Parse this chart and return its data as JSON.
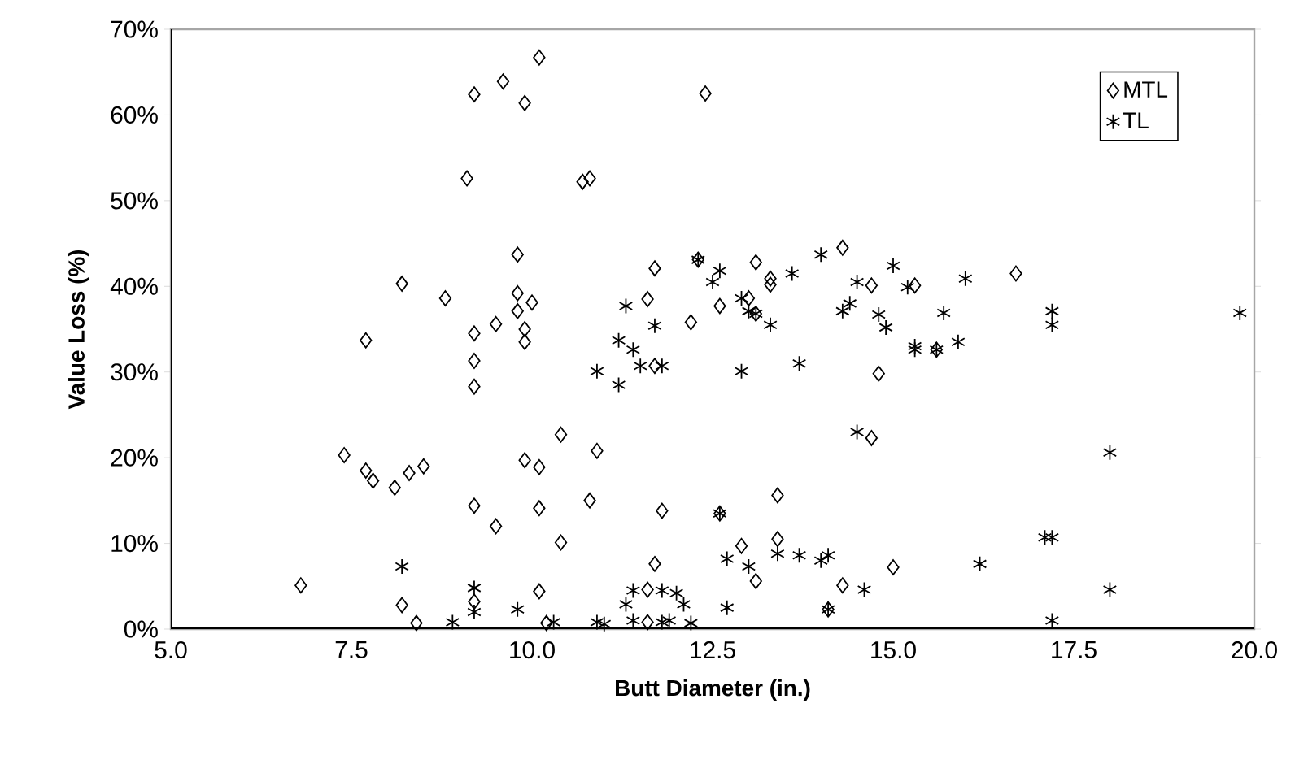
{
  "chart_data": {
    "type": "scatter",
    "xlabel": "Butt Diameter (in.)",
    "ylabel": "Value Loss (%)",
    "xlim": [
      5,
      20
    ],
    "ylim": [
      0,
      70
    ],
    "xticks": [
      {
        "value": 5,
        "label": "5.0"
      },
      {
        "value": 7.5,
        "label": "7.5"
      },
      {
        "value": 10,
        "label": "10.0"
      },
      {
        "value": 12.5,
        "label": "12.5"
      },
      {
        "value": 15,
        "label": "15.0"
      },
      {
        "value": 17.5,
        "label": "17.5"
      },
      {
        "value": 20,
        "label": "20.0"
      }
    ],
    "yticks": [
      {
        "value": 0,
        "label": "0%"
      },
      {
        "value": 10,
        "label": "10%"
      },
      {
        "value": 20,
        "label": "20%"
      },
      {
        "value": 30,
        "label": "30%"
      },
      {
        "value": 40,
        "label": "40%"
      },
      {
        "value": 50,
        "label": "50%"
      },
      {
        "value": 60,
        "label": "60%"
      },
      {
        "value": 70,
        "label": "70%"
      }
    ],
    "grid": false,
    "legend": "top right",
    "series": [
      {
        "name": "MTL",
        "color": "#000000",
        "marker": "diamond",
        "x": [
          6.8,
          7.4,
          7.7,
          7.7,
          7.8,
          8.1,
          8.2,
          8.2,
          8.3,
          8.4,
          8.5,
          8.8,
          9.1,
          9.2,
          9.2,
          9.2,
          9.2,
          9.2,
          9.2,
          9.5,
          9.5,
          9.6,
          9.8,
          9.8,
          9.8,
          9.9,
          9.9,
          9.9,
          9.9,
          10.0,
          10.1,
          10.1,
          10.1,
          10.1,
          10.2,
          10.4,
          10.4,
          10.7,
          10.8,
          10.8,
          10.9,
          11.6,
          11.6,
          11.6,
          11.7,
          11.7,
          11.7,
          11.8,
          12.2,
          12.3,
          12.4,
          12.6,
          12.6,
          12.9,
          13.0,
          13.1,
          13.1,
          13.1,
          13.3,
          13.3,
          13.4,
          13.4,
          14.1,
          14.3,
          14.3,
          14.7,
          14.7,
          14.8,
          15.0,
          15.3,
          15.6,
          16.7
        ],
        "values": [
          5.1,
          20.3,
          18.5,
          33.7,
          17.3,
          16.5,
          40.3,
          2.8,
          18.2,
          0.7,
          19.0,
          38.6,
          52.6,
          62.4,
          34.5,
          31.3,
          28.3,
          14.4,
          3.2,
          35.6,
          12.0,
          63.9,
          43.7,
          39.2,
          37.1,
          61.4,
          35.0,
          33.5,
          19.7,
          38.1,
          66.7,
          18.9,
          14.1,
          4.4,
          0.7,
          22.7,
          10.1,
          52.2,
          52.6,
          15.0,
          20.8,
          4.6,
          0.8,
          38.5,
          42.1,
          30.7,
          7.6,
          13.8,
          35.8,
          43.1,
          62.5,
          37.7,
          13.5,
          9.7,
          38.6,
          42.8,
          36.8,
          5.6,
          40.2,
          40.9,
          15.6,
          10.5,
          2.3,
          44.5,
          5.1,
          40.1,
          22.3,
          29.8,
          7.2,
          40.1,
          32.6,
          41.5
        ]
      },
      {
        "name": "TL",
        "color": "#000000",
        "marker": "cross",
        "x": [
          8.2,
          8.9,
          9.2,
          9.2,
          9.8,
          10.3,
          10.9,
          10.9,
          11.0,
          11.2,
          11.2,
          11.3,
          11.3,
          11.4,
          11.4,
          11.4,
          11.5,
          11.7,
          11.8,
          11.8,
          11.8,
          11.9,
          12.0,
          12.1,
          12.2,
          12.3,
          12.5,
          12.6,
          12.6,
          12.7,
          12.7,
          12.9,
          12.9,
          13.0,
          13.0,
          13.1,
          13.3,
          13.4,
          13.6,
          13.7,
          13.7,
          14.0,
          14.0,
          14.1,
          14.1,
          14.3,
          14.4,
          14.5,
          14.5,
          14.6,
          14.8,
          14.9,
          15.0,
          15.2,
          15.3,
          15.3,
          15.6,
          15.7,
          15.9,
          16.0,
          16.2,
          17.1,
          17.2,
          17.2,
          17.2,
          17.2,
          18.0,
          18.0,
          19.8
        ],
        "values": [
          7.3,
          0.8,
          4.8,
          2.0,
          2.3,
          0.8,
          30.1,
          0.8,
          0.6,
          33.7,
          28.5,
          2.9,
          37.7,
          32.6,
          4.5,
          1.0,
          30.7,
          35.4,
          0.8,
          30.7,
          4.5,
          1.0,
          4.2,
          2.9,
          0.7,
          43.1,
          40.5,
          41.8,
          13.5,
          8.2,
          2.5,
          30.1,
          38.6,
          37.1,
          7.3,
          36.8,
          35.5,
          8.8,
          41.5,
          31.0,
          8.6,
          8.0,
          43.7,
          8.6,
          2.3,
          37.1,
          38.0,
          40.5,
          23.0,
          4.6,
          36.7,
          35.2,
          42.4,
          39.9,
          32.6,
          33.0,
          32.6,
          36.9,
          33.5,
          40.9,
          7.6,
          10.7,
          10.7,
          37.1,
          35.5,
          1.0,
          20.6,
          4.6,
          36.9
        ]
      }
    ]
  }
}
